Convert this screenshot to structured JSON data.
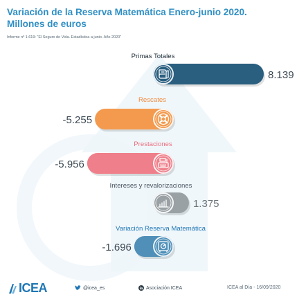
{
  "header": {
    "title_line1": "Variación de la Reserva Matemática Enero-junio 2020.",
    "title_line2": "Millones de euros",
    "source": "Informe nº 1.619: \"El Seguro de Vida. Estadística a junio. Año 2020\""
  },
  "chart_data": {
    "type": "bar",
    "orientation": "horizontal",
    "categories": [
      "Primas Totales",
      "Rescates",
      "Prestaciones",
      "Intereses y revalorizaciones",
      "Variación Reserva Matemática"
    ],
    "values": [
      8139,
      -5255,
      -5956,
      1375,
      -1696
    ],
    "value_labels": [
      "8.139",
      "-5.255",
      "-5.956",
      "1.375",
      "-1.696"
    ],
    "colors": [
      "#2a5f80",
      "#f39a4e",
      "#ef7f8a",
      "#9aa1a4",
      "#4f8fb8"
    ],
    "icons": [
      "book-icon",
      "lifebuoy-icon",
      "cash-register-icon",
      "growth-chart-icon",
      "safe-icon"
    ],
    "label_colors": [
      "#1f2d38",
      "#f08a3c",
      "#e9707f",
      "#4a5560",
      "#1f76b4"
    ],
    "value_colors": [
      "#3d4a54",
      "#3d4a54",
      "#3d4a54",
      "#6b7378",
      "#3d4a54"
    ]
  },
  "footer": {
    "brand": "ICEA",
    "twitter": "@icea_es",
    "linkedin": "Asociación ICEA",
    "date": "ICEA al Día - 16/09/2020"
  }
}
